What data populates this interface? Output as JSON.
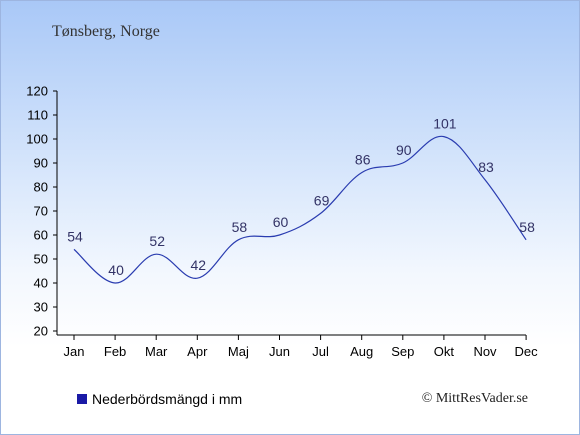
{
  "title": "Tønsberg, Norge",
  "legend_label": "Nederbördsmängd i mm",
  "copyright": "© MittResVader.se",
  "colors": {
    "line": "#2a3cb0",
    "axis": "#000000",
    "label": "#333366"
  },
  "chart_data": {
    "type": "line",
    "categories": [
      "Jan",
      "Feb",
      "Mar",
      "Apr",
      "Maj",
      "Jun",
      "Jul",
      "Aug",
      "Sep",
      "Okt",
      "Nov",
      "Dec"
    ],
    "values": [
      54,
      40,
      52,
      42,
      58,
      60,
      69,
      86,
      90,
      101,
      83,
      58
    ],
    "data_labels": [
      "54",
      "40",
      "52",
      "42",
      "58",
      "60",
      "69",
      "86",
      "90",
      "101",
      "83",
      "58"
    ],
    "ylim": [
      20,
      120
    ],
    "yticks": [
      "20",
      "30",
      "40",
      "50",
      "60",
      "70",
      "80",
      "90",
      "100",
      "110",
      "120"
    ],
    "grid": false,
    "legend_position": "bottom-left"
  }
}
